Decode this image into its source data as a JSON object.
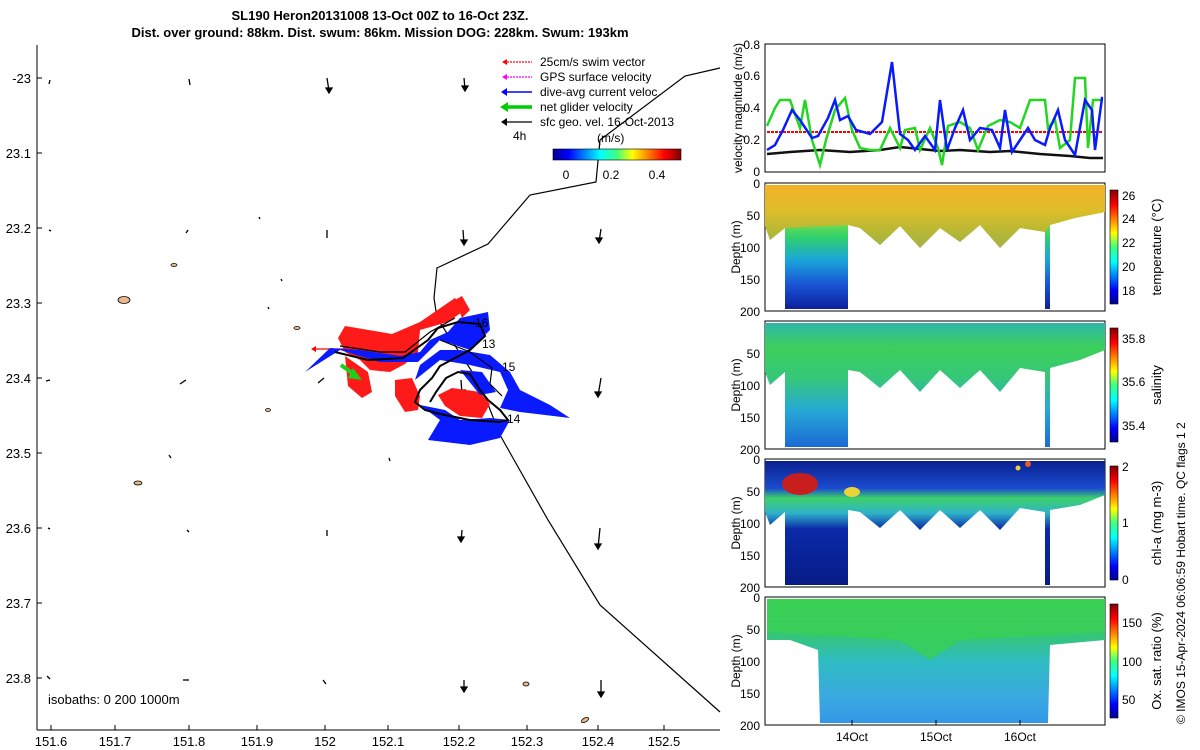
{
  "header": {
    "title_line1": "SL190 Heron20131008 13-Oct 00Z to 16-Oct 23Z.",
    "title_line2": "Dist. over ground: 88km. Dist. swum: 86km. Mission DOG: 228km. Swum: 193km"
  },
  "map": {
    "xticks": [
      "151.6",
      "151.7",
      "151.8",
      "151.9",
      "152",
      "152.1",
      "152.2",
      "152.3",
      "152.4",
      "152.5"
    ],
    "yticks": [
      "-23",
      "23.1",
      "23.2",
      "23.3",
      "23.4",
      "23.5",
      "23.6",
      "23.7",
      "23.8"
    ],
    "isobaths_label": "isobaths: 0   200  1000m",
    "legend": [
      {
        "label": "25cm/s swim vector",
        "color": "#ff0000"
      },
      {
        "label": "GPS surface velocity",
        "color": "#ff00ff"
      },
      {
        "label": "dive-avg current veloc.",
        "color": "#0000ff"
      },
      {
        "label": "net glider velocity",
        "color": "#00cc00"
      },
      {
        "label": "sfc geo. vel. 16-Oct-2013",
        "color": "#000000"
      }
    ],
    "colorbar": {
      "interval_label": "4h",
      "unit_label": "(m/s)",
      "ticks": [
        "0",
        "0.2",
        "0.4"
      ]
    },
    "day_labels": [
      "16",
      "13",
      "15",
      "14"
    ]
  },
  "velocity_panel": {
    "ylabel": "velocity magnitude (m/s)",
    "yticks": [
      "0",
      "0.2",
      "0.4",
      "0.6",
      "0.8"
    ],
    "colors": {
      "dive_avg": "#0000ff",
      "net_glider": "#00cc00",
      "swim": "#ff0000",
      "geo": "#000000"
    }
  },
  "profiles": [
    {
      "ylabel": "Depth (m)",
      "cbar_label": "temperature (°C)",
      "cbar_ticks": [
        "18",
        "20",
        "22",
        "24",
        "26"
      ]
    },
    {
      "ylabel": "Depth (m)",
      "cbar_label": "salinity",
      "cbar_ticks": [
        "35.4",
        "35.6",
        "35.8"
      ]
    },
    {
      "ylabel": "Depth (m)",
      "cbar_label": "chl-a (mg m-3)",
      "cbar_ticks": [
        "0",
        "1",
        "2"
      ]
    },
    {
      "ylabel": "Depth (m)",
      "cbar_label": "Ox. sat. ratio (%)",
      "cbar_ticks": [
        "50",
        "100",
        "150"
      ]
    }
  ],
  "depth_ticks": [
    "0",
    "50",
    "100",
    "150",
    "200"
  ],
  "time_ticks": [
    "14Oct",
    "15Oct",
    "16Oct"
  ],
  "side_note": "© IMOS 15-Apr-2024 06:06:59 Hobart time. QC flags 1  2"
}
